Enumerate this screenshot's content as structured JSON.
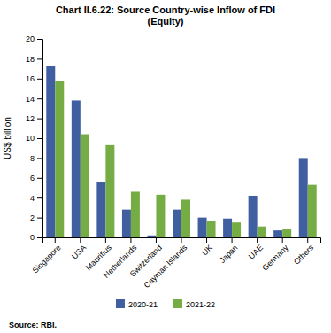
{
  "chart_data": {
    "type": "bar",
    "title": "Chart II.6.22: Source Country-wise Inflow of FDI\n(Equity)",
    "categories": [
      "Singapore",
      "USA",
      "Mauritius",
      "Netherlands",
      "Switzerland",
      "Cayman Islands",
      "UK",
      "Japan",
      "UAE",
      "Germany",
      "Others"
    ],
    "series": [
      {
        "name": "2020-21",
        "color": "#3F5FA0",
        "values": [
          17.3,
          13.8,
          5.6,
          2.8,
          0.2,
          2.8,
          2.0,
          1.9,
          4.2,
          0.7,
          8.0
        ]
      },
      {
        "name": "2021-22",
        "color": "#76AC44",
        "values": [
          15.8,
          10.4,
          9.3,
          4.6,
          4.3,
          3.8,
          1.7,
          1.5,
          1.1,
          0.8,
          5.3
        ]
      }
    ],
    "ylabel": "US$ billion",
    "ylim": [
      0,
      20
    ],
    "yticks": [
      0,
      2,
      4,
      6,
      8,
      10,
      12,
      14,
      16,
      18,
      20
    ],
    "grid": false,
    "legend": "bottom",
    "annotations": [
      "Source: RBI."
    ]
  }
}
